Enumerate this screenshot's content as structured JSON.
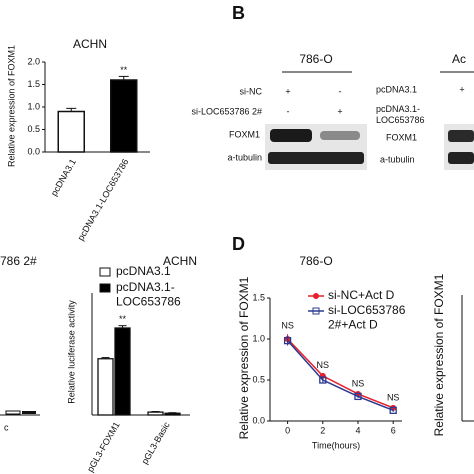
{
  "chart_data": [
    {
      "type": "bar",
      "title": "ACHN",
      "y_label": "Relative expression of FOXM1",
      "categories": [
        "pcDNA3.1",
        "pcDNA3.1-LOC653786"
      ],
      "values": [
        0.9,
        1.6
      ],
      "errors": [
        0.07,
        0.08
      ],
      "colors": [
        "#ffffff",
        "#000000"
      ],
      "annotations": [
        null,
        "**"
      ],
      "ylim": [
        0,
        2
      ],
      "yticks": [
        {
          "value": 0,
          "label": "0.0"
        },
        {
          "value": 0.5,
          "label": "0.5"
        },
        {
          "value": 1,
          "label": "1.0"
        },
        {
          "value": 1.5,
          "label": "1.5"
        },
        {
          "value": 2,
          "label": "2.0"
        }
      ]
    },
    {
      "type": "grouped_bar",
      "title": "ACHN",
      "y_label": "Relative luciferase activity",
      "categories": [
        "pGL3-FOXM1",
        "pGL3-Basic"
      ],
      "series": [
        {
          "name": "pcDNA3.1",
          "color": "#ffffff",
          "values": [
            0.97,
            0.05
          ],
          "errors": [
            0.02,
            0.01
          ]
        },
        {
          "name": "pcDNA3.1-LOC653786",
          "color": "#000000",
          "values": [
            1.5,
            0.03
          ],
          "errors": [
            0.04,
            0.01
          ]
        }
      ],
      "annotation": "**",
      "ylim": [
        0,
        2
      ]
    },
    {
      "type": "line",
      "title": "786-O",
      "x_label": "Time(hours)",
      "y_label": "Relative expression of FOXM1",
      "x": [
        0,
        2,
        4,
        6
      ],
      "series": [
        {
          "name": "si-NC+Act D",
          "color": "#e8202a",
          "values": [
            1.0,
            0.55,
            0.33,
            0.16
          ],
          "errors": [
            0.06,
            0.03,
            0.02,
            0.02
          ]
        },
        {
          "name": "si-LOC653786 2#+Act D",
          "color": "#2b3a8f",
          "values": [
            0.98,
            0.5,
            0.3,
            0.13
          ],
          "errors": [
            0.06,
            0.03,
            0.02,
            0.02
          ]
        }
      ],
      "annotation": "NS",
      "xlim": [
        -1,
        6.5
      ],
      "xticks": [
        0,
        2,
        4,
        6
      ],
      "ylim": [
        0,
        1.5
      ],
      "yticks": [
        {
          "value": 0,
          "label": "0.0"
        },
        {
          "value": 0.5,
          "label": "0.5"
        },
        {
          "value": 1,
          "label": "1.0"
        },
        {
          "value": 1.5,
          "label": "1.5"
        }
      ]
    }
  ],
  "panel_labels": {
    "b": "B",
    "d": "D"
  },
  "blot_786o": {
    "title": "786-O",
    "rows": [
      {
        "label": "si-NC",
        "marks": [
          "+",
          "-"
        ]
      },
      {
        "label": "si-LOC653786 2#",
        "marks": [
          "-",
          "+"
        ]
      }
    ],
    "bands": [
      "FOXM1",
      "a-tubulin"
    ]
  },
  "blot_achn": {
    "title": "Ac",
    "rows": [
      {
        "label": "pcDNA3.1",
        "marks": [
          "+"
        ]
      },
      {
        "label": "pcDNA3.1-LOC653786"
      }
    ],
    "bands": [
      "FOXM1",
      "a-tubulin"
    ]
  },
  "fragments": {
    "left_label": "786 2#",
    "left_tick": "c",
    "right_y_label": "Relative expression of FOXM1"
  }
}
